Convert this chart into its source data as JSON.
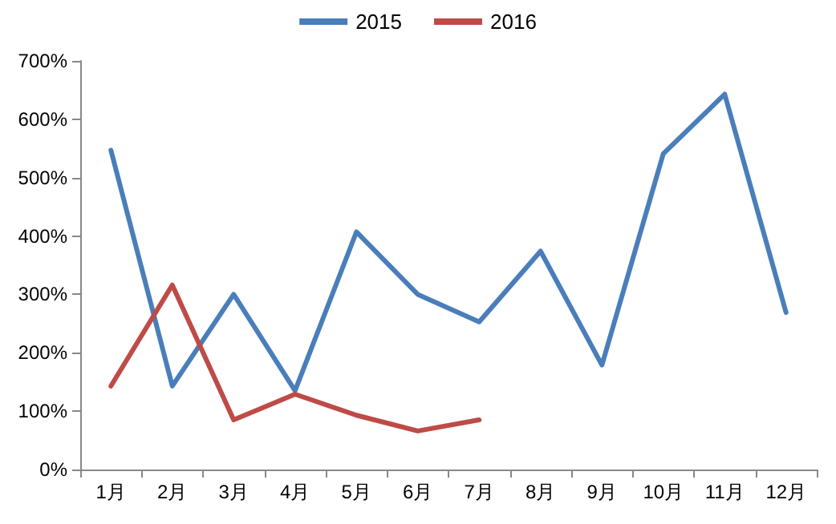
{
  "chart_data": {
    "type": "line",
    "categories": [
      "1月",
      "2月",
      "3月",
      "4月",
      "5月",
      "6月",
      "7月",
      "8月",
      "9月",
      "10月",
      "11月",
      "12月"
    ],
    "series": [
      {
        "name": "2015",
        "color": "#4a7ebb",
        "values": [
          547,
          143,
          300,
          135,
          407,
          300,
          253,
          374,
          179,
          541,
          643,
          269
        ]
      },
      {
        "name": "2016",
        "color": "#be4b48",
        "values": [
          143,
          316,
          85,
          129,
          93,
          66,
          85,
          null,
          null,
          null,
          null,
          null
        ]
      }
    ],
    "ylim": [
      0,
      700
    ],
    "yticks": [
      {
        "value": 0,
        "label": "0%"
      },
      {
        "value": 100,
        "label": "100%"
      },
      {
        "value": 200,
        "label": "200%"
      },
      {
        "value": 300,
        "label": "300%"
      },
      {
        "value": 400,
        "label": "400%"
      },
      {
        "value": 500,
        "label": "500%"
      },
      {
        "value": 600,
        "label": "600%"
      },
      {
        "value": 700,
        "label": "700%"
      }
    ],
    "grid": false,
    "legend": "top",
    "marker": "none",
    "line_style": "solid"
  }
}
